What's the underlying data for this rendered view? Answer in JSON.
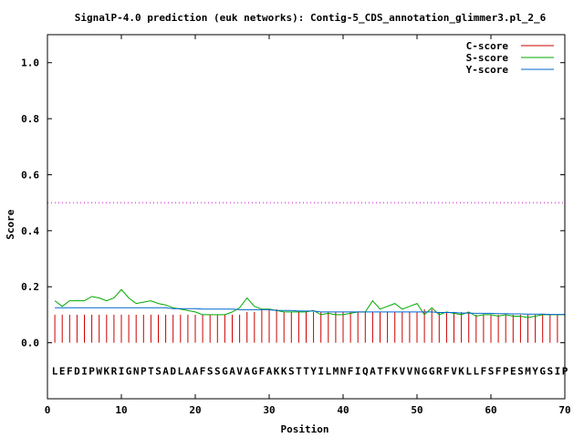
{
  "chart_data": {
    "type": "line",
    "title": "SignalP-4.0 prediction (euk networks): Contig-5_CDS_annotation_glimmer3.pl_2_6",
    "xlabel": "Position",
    "ylabel": "Score",
    "xlim": [
      0,
      70
    ],
    "ylim": [
      -0.2,
      1.1
    ],
    "xticks": [
      "0",
      "10",
      "20",
      "30",
      "40",
      "50",
      "60",
      "70"
    ],
    "yticks": [
      "0.0",
      "0.2",
      "0.4",
      "0.6",
      "0.8",
      "1.0"
    ],
    "legend_position": "top-right",
    "threshold": 0.5,
    "sequence": "LEFDIPWKRIGNPTSADLAAFSSGAVAGFAKKSTTYILMNFIQATFKVVNGGRFVKLLFSFPESMYGSIP",
    "series": [
      {
        "name": "C-score",
        "color": "#cc0000",
        "style": "impulses",
        "x": [
          1,
          2,
          3,
          4,
          5,
          6,
          7,
          8,
          9,
          10,
          11,
          12,
          13,
          14,
          15,
          16,
          17,
          18,
          19,
          20,
          21,
          22,
          23,
          24,
          25,
          26,
          27,
          28,
          29,
          30,
          31,
          32,
          33,
          34,
          35,
          36,
          37,
          38,
          39,
          40,
          41,
          42,
          43,
          44,
          45,
          46,
          47,
          48,
          49,
          50,
          51,
          52,
          53,
          54,
          55,
          56,
          57,
          58,
          59,
          60,
          61,
          62,
          63,
          64,
          65,
          66,
          67,
          68,
          69,
          70
        ],
        "values": [
          0.1,
          0.1,
          0.1,
          0.1,
          0.1,
          0.1,
          0.1,
          0.1,
          0.1,
          0.1,
          0.1,
          0.1,
          0.1,
          0.1,
          0.1,
          0.1,
          0.1,
          0.1,
          0.1,
          0.1,
          0.1,
          0.1,
          0.1,
          0.1,
          0.1,
          0.1,
          0.11,
          0.11,
          0.12,
          0.12,
          0.12,
          0.11,
          0.11,
          0.11,
          0.11,
          0.11,
          0.11,
          0.11,
          0.11,
          0.11,
          0.11,
          0.11,
          0.11,
          0.11,
          0.11,
          0.11,
          0.11,
          0.11,
          0.11,
          0.11,
          0.12,
          0.12,
          0.11,
          0.11,
          0.11,
          0.11,
          0.11,
          0.1,
          0.1,
          0.1,
          0.1,
          0.1,
          0.1,
          0.1,
          0.1,
          0.1,
          0.1,
          0.1,
          0.1,
          0.1
        ]
      },
      {
        "name": "S-score",
        "color": "#00aa00",
        "style": "line",
        "x": [
          1,
          2,
          3,
          4,
          5,
          6,
          7,
          8,
          9,
          10,
          11,
          12,
          13,
          14,
          15,
          16,
          17,
          18,
          19,
          20,
          21,
          22,
          23,
          24,
          25,
          26,
          27,
          28,
          29,
          30,
          31,
          32,
          33,
          34,
          35,
          36,
          37,
          38,
          39,
          40,
          41,
          42,
          43,
          44,
          45,
          46,
          47,
          48,
          49,
          50,
          51,
          52,
          53,
          54,
          55,
          56,
          57,
          58,
          59,
          60,
          61,
          62,
          63,
          64,
          65,
          66,
          67,
          68,
          69,
          70
        ],
        "values": [
          0.15,
          0.13,
          0.15,
          0.15,
          0.15,
          0.165,
          0.16,
          0.15,
          0.16,
          0.19,
          0.16,
          0.14,
          0.145,
          0.15,
          0.14,
          0.135,
          0.125,
          0.12,
          0.115,
          0.11,
          0.1,
          0.1,
          0.1,
          0.1,
          0.11,
          0.125,
          0.16,
          0.13,
          0.12,
          0.12,
          0.115,
          0.11,
          0.11,
          0.11,
          0.11,
          0.115,
          0.1,
          0.105,
          0.1,
          0.1,
          0.105,
          0.11,
          0.11,
          0.15,
          0.12,
          0.13,
          0.14,
          0.12,
          0.13,
          0.14,
          0.1,
          0.125,
          0.1,
          0.11,
          0.105,
          0.1,
          0.11,
          0.095,
          0.1,
          0.1,
          0.095,
          0.1,
          0.095,
          0.095,
          0.09,
          0.095,
          0.1,
          0.1,
          0.1,
          0.1
        ]
      },
      {
        "name": "Y-score",
        "color": "#0066cc",
        "style": "line",
        "x": [
          1,
          2,
          3,
          4,
          5,
          6,
          7,
          8,
          9,
          10,
          11,
          12,
          13,
          14,
          15,
          16,
          17,
          18,
          19,
          20,
          21,
          22,
          23,
          24,
          25,
          26,
          27,
          28,
          29,
          30,
          31,
          32,
          33,
          34,
          35,
          36,
          37,
          38,
          39,
          40,
          41,
          42,
          43,
          44,
          45,
          46,
          47,
          48,
          49,
          50,
          51,
          52,
          53,
          54,
          55,
          56,
          57,
          58,
          59,
          60,
          61,
          62,
          63,
          64,
          65,
          66,
          67,
          68,
          69,
          70
        ],
        "values": [
          0.125,
          0.125,
          0.125,
          0.125,
          0.125,
          0.125,
          0.125,
          0.125,
          0.125,
          0.125,
          0.125,
          0.125,
          0.125,
          0.125,
          0.125,
          0.125,
          0.122,
          0.122,
          0.122,
          0.122,
          0.12,
          0.12,
          0.12,
          0.12,
          0.12,
          0.118,
          0.118,
          0.118,
          0.118,
          0.118,
          0.115,
          0.115,
          0.115,
          0.113,
          0.113,
          0.113,
          0.11,
          0.11,
          0.11,
          0.11,
          0.11,
          0.11,
          0.11,
          0.11,
          0.11,
          0.11,
          0.11,
          0.11,
          0.11,
          0.11,
          0.11,
          0.11,
          0.108,
          0.108,
          0.108,
          0.106,
          0.106,
          0.105,
          0.105,
          0.105,
          0.104,
          0.104,
          0.103,
          0.103,
          0.102,
          0.102,
          0.102,
          0.101,
          0.101,
          0.101
        ]
      }
    ]
  }
}
